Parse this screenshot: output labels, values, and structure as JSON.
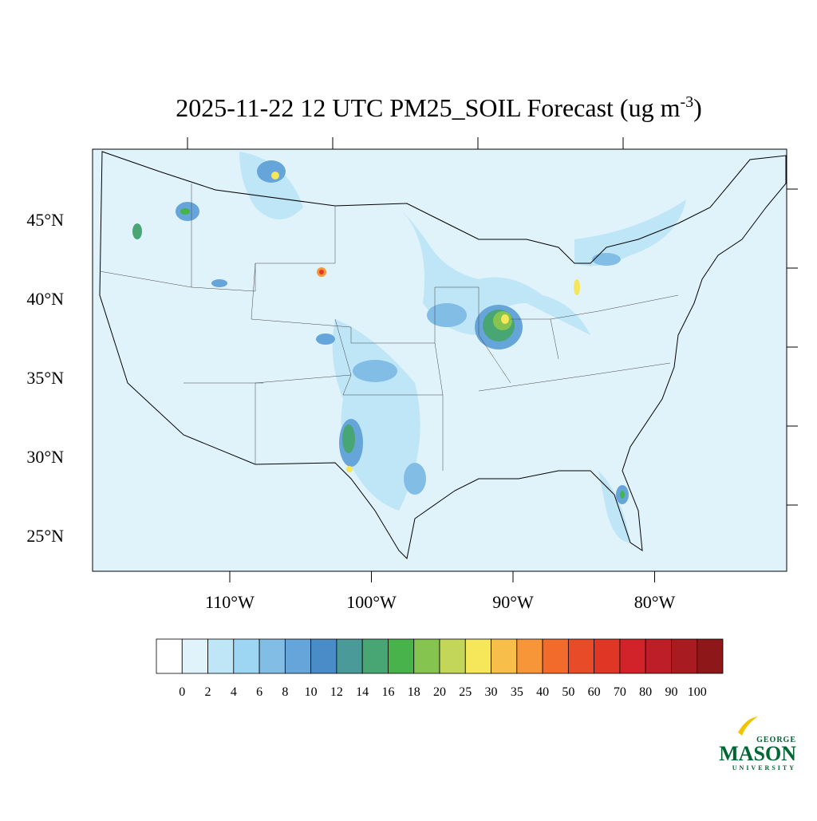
{
  "title": {
    "main": "2025-11-22 12 UTC PM25_SOIL Forecast (ug m",
    "superscript": "-3",
    "close": ")"
  },
  "map": {
    "lat_labels": [
      "45°N",
      "40°N",
      "35°N",
      "30°N",
      "25°N"
    ],
    "lon_labels": [
      "110°W",
      "100°W",
      "90°W",
      "80°W"
    ]
  },
  "colorbar": {
    "labels": [
      "0",
      "2",
      "4",
      "6",
      "8",
      "10",
      "12",
      "14",
      "16",
      "18",
      "20",
      "25",
      "30",
      "35",
      "40",
      "50",
      "60",
      "70",
      "80",
      "90",
      "100"
    ],
    "colors": [
      "#ffffff",
      "#e0f3fb",
      "#bfe6f7",
      "#9dd6f3",
      "#82bde6",
      "#66a5da",
      "#4a8cc8",
      "#4a9a9a",
      "#48a574",
      "#48b34a",
      "#86c450",
      "#c3d65a",
      "#f6e65a",
      "#f7be4a",
      "#f79638",
      "#f26b2b",
      "#e84b28",
      "#e03626",
      "#d3232a",
      "#bd1e28",
      "#a71b21",
      "#8e1719"
    ]
  },
  "logo": {
    "top": "GEORGE",
    "main": "MASON",
    "bottom": "UNIVERSITY"
  }
}
